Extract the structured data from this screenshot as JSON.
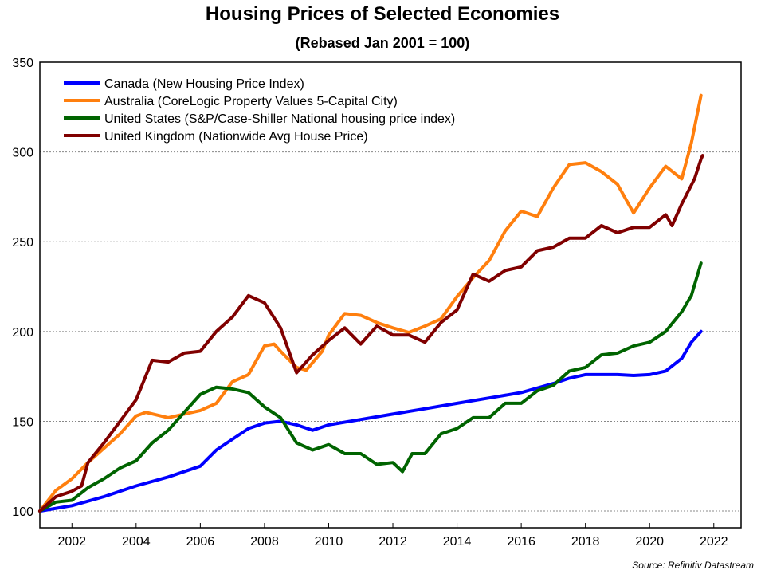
{
  "chart_data": {
    "type": "line",
    "title": "Housing Prices of Selected Economies",
    "subtitle": "(Rebased Jan 2001 = 100)",
    "xlabel": "",
    "ylabel": "",
    "xlim": [
      2001,
      2022.85
    ],
    "ylim": [
      90.7,
      350
    ],
    "yticks": [
      100,
      150,
      200,
      250,
      300,
      350
    ],
    "xticks": [
      2002,
      2004,
      2006,
      2008,
      2010,
      2012,
      2014,
      2016,
      2018,
      2020,
      2022
    ],
    "grid": "horizontal dashed",
    "legend_position": "top-left",
    "source": "Source: Refinitiv Datastream",
    "series": [
      {
        "name": "Canada (New Housing Price Index)",
        "color": "#0000ff",
        "x": [
          2001,
          2002,
          2003,
          2004,
          2005,
          2006,
          2006.5,
          2007,
          2007.5,
          2008,
          2008.5,
          2009,
          2009.5,
          2010,
          2011,
          2012,
          2013,
          2014,
          2015,
          2016,
          2017,
          2017.5,
          2018,
          2019,
          2019.5,
          2020,
          2020.5,
          2021,
          2021.3,
          2021.6
        ],
        "y": [
          100,
          103,
          108,
          114,
          119,
          125,
          134,
          140,
          146,
          149,
          150,
          148,
          145,
          148,
          151,
          154,
          157,
          160,
          163,
          166,
          171,
          174,
          176,
          176,
          175.5,
          176,
          178,
          185,
          194,
          200
        ]
      },
      {
        "name": "Australia (CoreLogic Property Values 5-Capital City)",
        "color": "#ff7f0e",
        "x": [
          2001,
          2001.5,
          2002,
          2002.5,
          2003,
          2003.5,
          2004,
          2004.3,
          2005,
          2005.5,
          2006,
          2006.5,
          2007,
          2007.5,
          2008,
          2008.3,
          2008.5,
          2009,
          2009.3,
          2009.8,
          2010,
          2010.5,
          2011,
          2011.5,
          2012,
          2012.5,
          2013,
          2013.5,
          2014,
          2014.5,
          2015,
          2015.5,
          2016,
          2016.5,
          2017,
          2017.5,
          2018,
          2018.5,
          2019,
          2019.5,
          2020,
          2020.5,
          2021,
          2021.3,
          2021.6
        ],
        "y": [
          100,
          111.5,
          118,
          127,
          135,
          143,
          153,
          155,
          152,
          154,
          156,
          160,
          172,
          176,
          192,
          193,
          189,
          180,
          178.5,
          189,
          198,
          210,
          209,
          205,
          202,
          199.5,
          203,
          207,
          219.5,
          230,
          239.5,
          256,
          267,
          264,
          280,
          293,
          294,
          289,
          282,
          266,
          280,
          292,
          285,
          305,
          331.5
        ]
      },
      {
        "name": "United States (S&P/Case-Shiller National housing price index)",
        "color": "#006400",
        "x": [
          2001,
          2001.5,
          2002,
          2002.5,
          2003,
          2003.5,
          2004,
          2004.5,
          2005,
          2005.5,
          2006,
          2006.5,
          2007,
          2007.5,
          2008,
          2008.5,
          2009,
          2009.5,
          2010,
          2010.5,
          2011,
          2011.5,
          2012,
          2012.3,
          2012.6,
          2013,
          2013.5,
          2014,
          2014.5,
          2015,
          2015.5,
          2016,
          2016.5,
          2017,
          2017.5,
          2018,
          2018.5,
          2019,
          2019.5,
          2020,
          2020.5,
          2021,
          2021.3,
          2021.6
        ],
        "y": [
          100,
          105,
          106,
          113,
          118,
          124,
          128,
          138,
          145,
          155,
          165,
          169,
          168,
          166,
          158,
          152,
          138,
          134,
          137,
          132,
          132,
          126,
          127,
          122,
          132,
          132,
          143,
          146,
          152,
          152,
          160,
          160,
          167,
          170,
          178,
          180,
          187,
          188,
          192,
          194,
          200,
          211,
          220,
          238
        ]
      },
      {
        "name": "United Kingdom (Nationwide Avg House Price)",
        "color": "#800000",
        "x": [
          2001,
          2001.5,
          2002,
          2002.3,
          2002.5,
          2003,
          2003.5,
          2004,
          2004.5,
          2005,
          2005.5,
          2006,
          2006.5,
          2007,
          2007.5,
          2008,
          2008.5,
          2009,
          2009.5,
          2010,
          2010.5,
          2011,
          2011.5,
          2012,
          2012.5,
          2013,
          2013.5,
          2014,
          2014.5,
          2015,
          2015.5,
          2016,
          2016.5,
          2017,
          2017.5,
          2018,
          2018.5,
          2019,
          2019.5,
          2020,
          2020.5,
          2020.7,
          2021,
          2021.4,
          2021.6,
          2021.65
        ],
        "y": [
          100,
          108,
          111,
          114,
          127,
          138,
          150,
          162,
          184,
          183,
          188,
          189,
          200,
          208,
          220,
          216,
          202,
          177,
          187,
          195,
          202,
          193,
          203,
          198,
          198,
          194,
          205,
          212,
          232,
          228,
          234,
          236,
          245,
          247,
          252,
          252,
          259,
          255,
          258,
          258,
          265,
          259,
          271,
          285,
          296,
          298
        ]
      }
    ]
  }
}
